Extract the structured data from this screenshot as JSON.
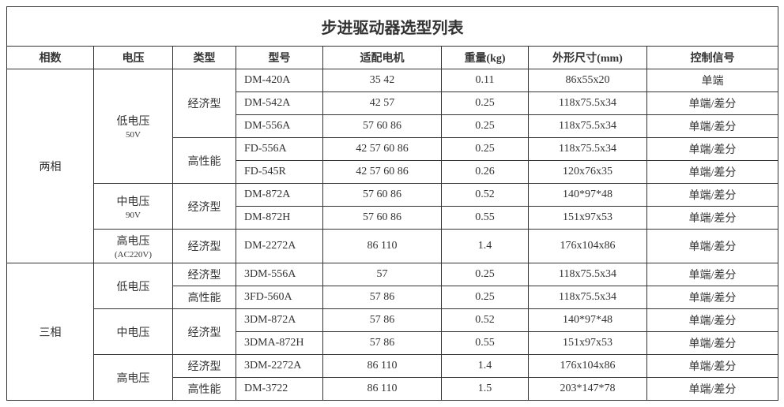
{
  "title": "步进驱动器选型列表",
  "columns": [
    "相数",
    "电压",
    "类型",
    "型号",
    "适配电机",
    "重量(kg)",
    "外形尺寸(mm)",
    "控制信号"
  ],
  "rows": [
    {
      "phase": "两相",
      "phase_rows": 8,
      "voltage": "低电压",
      "voltage_sub": "50V",
      "voltage_rows": 5,
      "type": "经济型",
      "type_rows": 3,
      "model": "DM-420A",
      "motor": "35 42",
      "weight": "0.11",
      "dim": "86x55x20",
      "signal": "单端"
    },
    {
      "model": "DM-542A",
      "motor": "42 57",
      "weight": "0.25",
      "dim": "118x75.5x34",
      "signal": "单端/差分"
    },
    {
      "model": "DM-556A",
      "motor": "57 60 86",
      "weight": "0.25",
      "dim": "118x75.5x34",
      "signal": "单端/差分"
    },
    {
      "type": "高性能",
      "type_rows": 2,
      "model": "FD-556A",
      "motor": "42 57 60 86",
      "weight": "0.25",
      "dim": "118x75.5x34",
      "signal": "单端/差分"
    },
    {
      "model": "FD-545R",
      "motor": "42 57 60 86",
      "weight": "0.26",
      "dim": "120x76x35",
      "signal": "单端/差分"
    },
    {
      "voltage": "中电压",
      "voltage_sub": "90V",
      "voltage_rows": 2,
      "type": "经济型",
      "type_rows": 2,
      "model": "DM-872A",
      "motor": "57 60 86",
      "weight": "0.52",
      "dim": "140*97*48",
      "signal": "单端/差分"
    },
    {
      "model": "DM-872H",
      "motor": "57 60 86",
      "weight": "0.55",
      "dim": "151x97x53",
      "signal": "单端/差分"
    },
    {
      "voltage": "高电压",
      "voltage_sub": "(AC220V)",
      "voltage_rows": 1,
      "type": "经济型",
      "type_rows": 1,
      "model": "DM-2272A",
      "motor": "86 110",
      "weight": "1.4",
      "dim": "176x104x86",
      "signal": "单端/差分"
    },
    {
      "phase": "三相",
      "phase_rows": 6,
      "voltage": "低电压",
      "voltage_rows": 2,
      "type": "经济型",
      "type_rows": 1,
      "model": "3DM-556A",
      "motor": "57",
      "weight": "0.25",
      "dim": "118x75.5x34",
      "signal": "单端/差分"
    },
    {
      "type": "高性能",
      "type_rows": 1,
      "model": "3FD-560A",
      "motor": "57 86",
      "weight": "0.25",
      "dim": "118x75.5x34",
      "signal": "单端/差分"
    },
    {
      "voltage": "中电压",
      "voltage_rows": 2,
      "type": "经济型",
      "type_rows": 2,
      "model": "3DM-872A",
      "motor": "57 86",
      "weight": "0.52",
      "dim": "140*97*48",
      "signal": "单端/差分"
    },
    {
      "model": "3DMA-872H",
      "motor": "57 86",
      "weight": "0.55",
      "dim": "151x97x53",
      "signal": "单端/差分"
    },
    {
      "voltage": "高电压",
      "voltage_rows": 2,
      "type": "经济型",
      "type_rows": 1,
      "model": "3DM-2272A",
      "motor": "86 110",
      "weight": "1.4",
      "dim": "176x104x86",
      "signal": "单端/差分"
    },
    {
      "type": "高性能",
      "type_rows": 1,
      "model": "DM-3722",
      "motor": "86 110",
      "weight": "1.5",
      "dim": "203*147*78",
      "signal": "单端/差分"
    }
  ]
}
